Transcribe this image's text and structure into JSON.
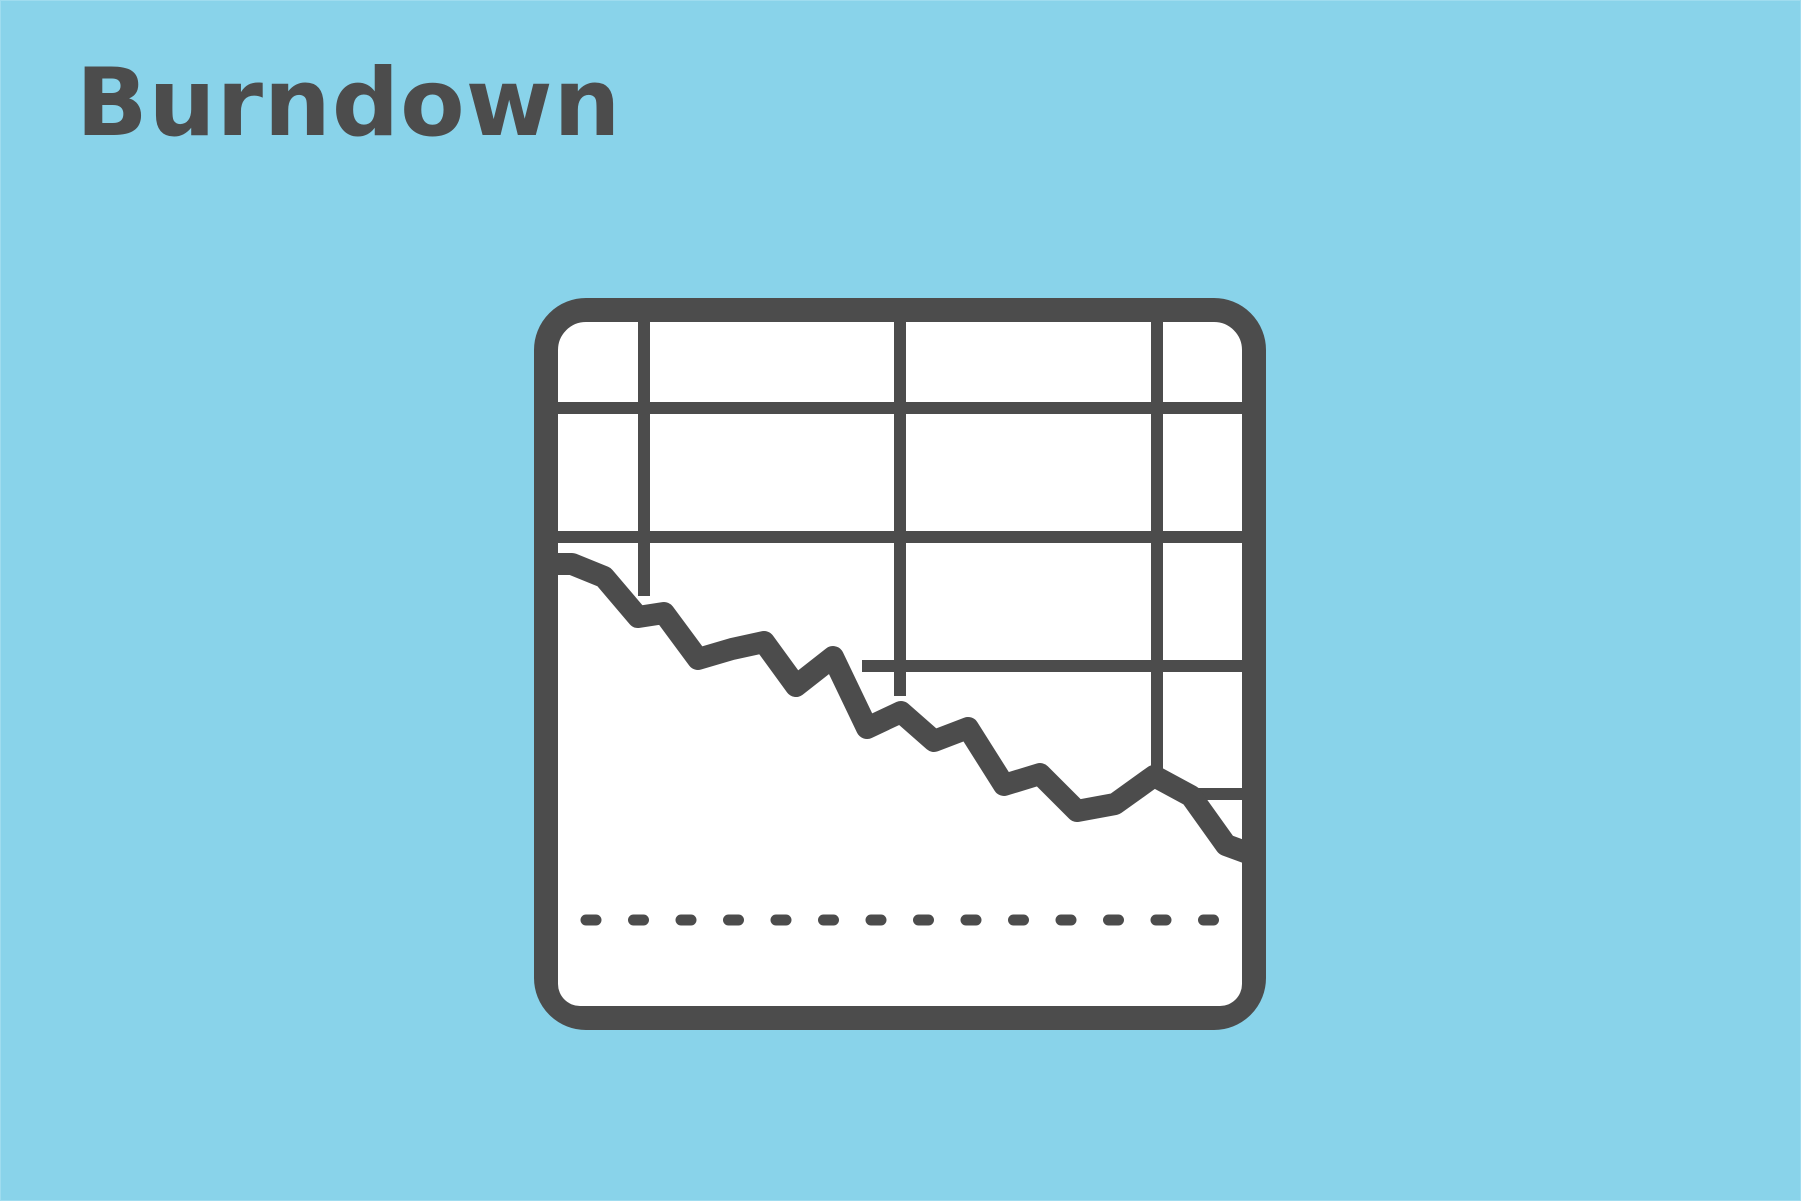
{
  "page": {
    "title": "Burndown"
  },
  "icon": {
    "name": "burndown-chart-icon",
    "stroke_color": "#4c4c4c",
    "fill_color": "#ffffff",
    "background_color": "#89d3ea"
  }
}
